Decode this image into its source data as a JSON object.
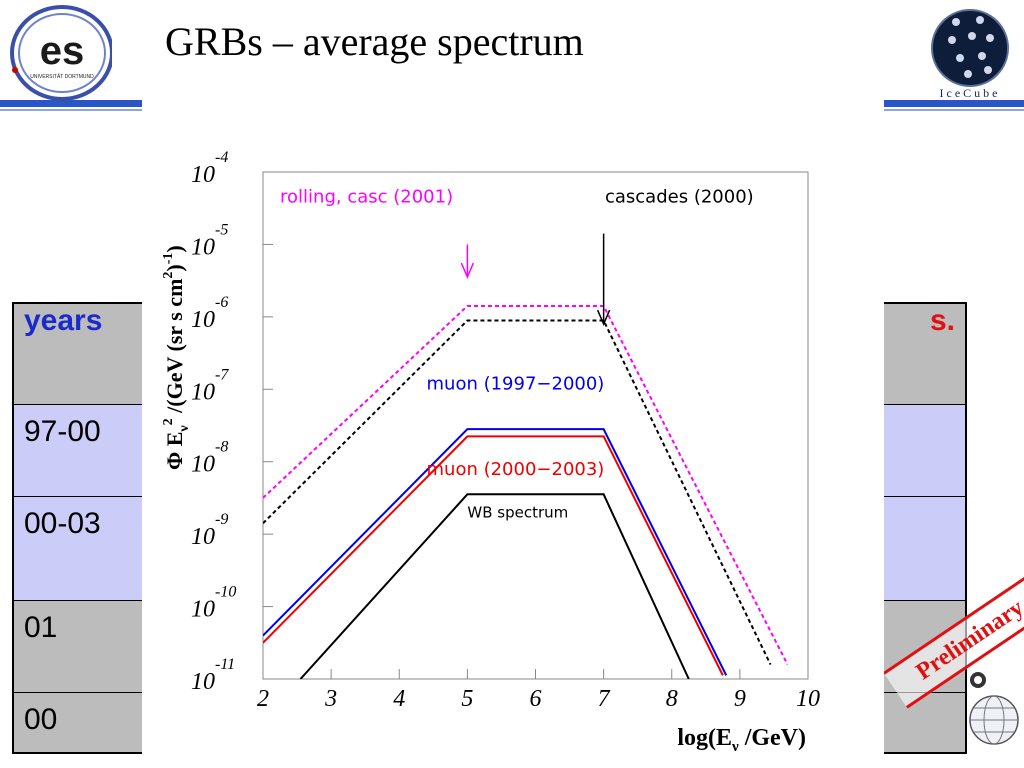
{
  "slide": {
    "title": "GRBs – average spectrum",
    "logo_right_text": "IceCube",
    "logo_left_text": "es",
    "logo_left_subtext": "UNIVERSITÄT DORTMUND",
    "preliminary": "Preliminary"
  },
  "colors": {
    "accent_rule": "#2a55c8",
    "table_header_text": "#1a2acc",
    "table_highlight": "#e01010",
    "lavender_row": "#ccccf8",
    "gray_row": "#bcbcbc"
  },
  "table": {
    "header": {
      "years": "years",
      "right_fragment": "s."
    },
    "rows": [
      {
        "years": "97-00",
        "style": "lavender"
      },
      {
        "years": "00-03",
        "style": "lavender"
      },
      {
        "years": "01",
        "style": "gray"
      },
      {
        "years": "00",
        "style": "gray"
      }
    ]
  },
  "chart_data": {
    "type": "line",
    "log_y": true,
    "xlim": [
      2,
      10
    ],
    "ylim": [
      -11,
      -4
    ],
    "x_ticks": [
      "2",
      "3",
      "4",
      "5",
      "6",
      "7",
      "8",
      "9",
      "10"
    ],
    "y_ticks": [
      {
        "base": "10",
        "exp": "-4"
      },
      {
        "base": "10",
        "exp": "-5"
      },
      {
        "base": "10",
        "exp": "-6"
      },
      {
        "base": "10",
        "exp": "-7"
      },
      {
        "base": "10",
        "exp": "-8"
      },
      {
        "base": "10",
        "exp": "-9"
      },
      {
        "base": "10",
        "exp": "-10"
      },
      {
        "base": "10",
        "exp": "-11"
      }
    ],
    "xlabel": "log(E",
    "xlabel_sub": "ν",
    "xlabel_tail": " /GeV)",
    "ylabel": "Φ E",
    "ylabel_sub": "ν",
    "ylabel_sup": "2",
    "ylabel_tail": " /(GeV (sr s cm",
    "ylabel_sup2": "2",
    "ylabel_tail2": ")",
    "ylabel_sup3": "-1",
    "ylabel_end": ")",
    "series": [
      {
        "name": "rolling, casc (2001)",
        "color": "#ff00ff",
        "dash": true,
        "x": [
          2,
          5,
          7,
          9.7
        ],
        "y": [
          -8.5,
          -5.85,
          -5.85,
          -10.8
        ]
      },
      {
        "name": "cascades (2000)",
        "color": "#000000",
        "dash": true,
        "x": [
          2,
          5,
          7,
          9.45
        ],
        "y": [
          -8.85,
          -6.05,
          -6.05,
          -10.8
        ]
      },
      {
        "name": "muon (1997−2000)",
        "color": "#0000ee",
        "dash": false,
        "x": [
          2,
          5,
          7,
          8.8
        ],
        "y": [
          -10.4,
          -7.55,
          -7.55,
          -10.95
        ]
      },
      {
        "name": "muon (2000−2003)",
        "color": "#ee0000",
        "dash": false,
        "x": [
          2,
          5,
          7,
          8.75
        ],
        "y": [
          -10.5,
          -7.65,
          -7.65,
          -10.95
        ]
      },
      {
        "name": "WB spectrum",
        "color": "#000000",
        "dash": false,
        "x": [
          2.55,
          5,
          7,
          8.25
        ],
        "y": [
          -11.0,
          -8.45,
          -8.45,
          -11.0
        ]
      }
    ],
    "arrows": [
      {
        "series": 0,
        "x": 5,
        "y_from": -5.0,
        "y_to": -5.45
      },
      {
        "series": 1,
        "x": 7,
        "y_from": -4.85,
        "y_to": -6.1
      }
    ],
    "labels": [
      {
        "text": "rolling, casc (2001)",
        "color": "#ff00ff",
        "x": 2.25,
        "y": -4.42,
        "anchor": "start"
      },
      {
        "text": "cascades (2000)",
        "color": "#000000",
        "x": 7.02,
        "y": -4.42,
        "anchor": "start"
      },
      {
        "text": "muon (1997−2000)",
        "color": "#0000ee",
        "x": 4.4,
        "y": -7.0,
        "anchor": "start"
      },
      {
        "text": "muon (2000−2003)",
        "color": "#ee0000",
        "x": 4.4,
        "y": -8.18,
        "anchor": "start"
      },
      {
        "text": "WB spectrum",
        "color": "#000000",
        "x": 5.0,
        "y": -8.77,
        "anchor": "start"
      }
    ]
  }
}
